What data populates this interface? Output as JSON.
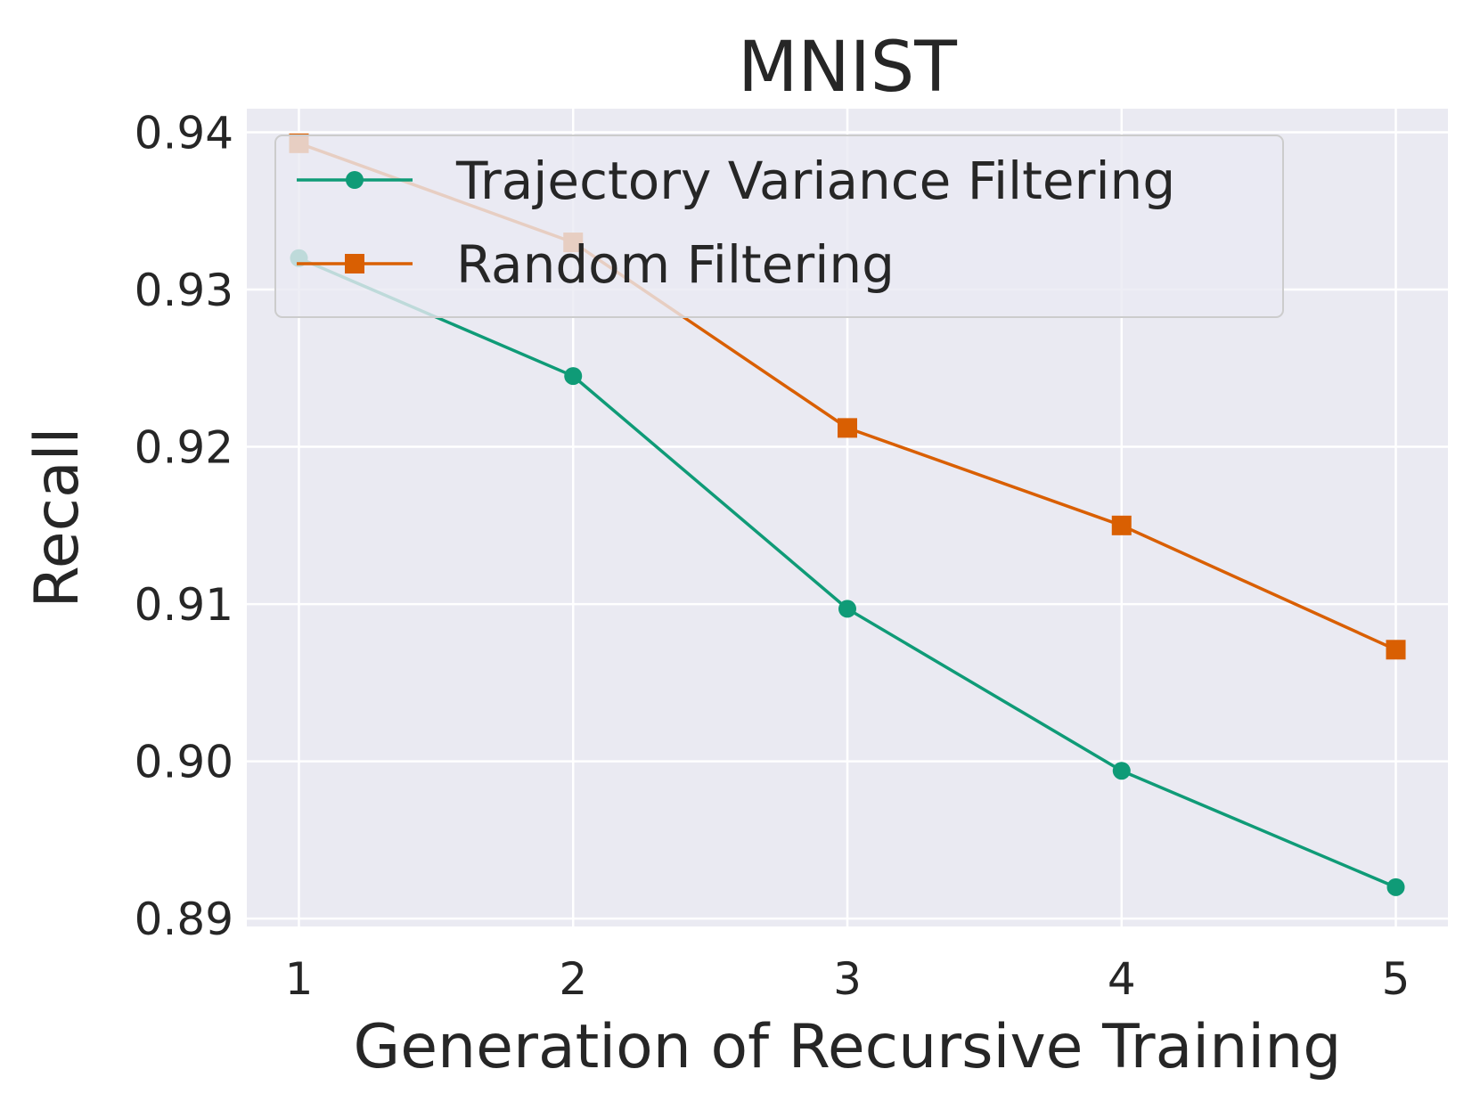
{
  "chart_data": {
    "type": "line",
    "title": "MNIST",
    "xlabel": "Generation of Recursive Training",
    "ylabel": "Recall",
    "x": [
      1,
      2,
      3,
      4,
      5
    ],
    "xlim": [
      0.81,
      5.19
    ],
    "ylim": [
      0.8895,
      0.9415
    ],
    "xticks": [
      1,
      2,
      3,
      4,
      5
    ],
    "xtick_labels": [
      "1",
      "2",
      "3",
      "4",
      "5"
    ],
    "yticks": [
      0.89,
      0.9,
      0.91,
      0.92,
      0.93,
      0.94
    ],
    "ytick_labels": [
      "0.89",
      "0.90",
      "0.91",
      "0.92",
      "0.93",
      "0.94"
    ],
    "grid": true,
    "legend_position": "upper-left",
    "background_color": "#eaeaf2",
    "grid_color": "#ffffff",
    "series": [
      {
        "name": "Trajectory Variance Filtering",
        "values": [
          0.932,
          0.9245,
          0.9097,
          0.8994,
          0.892
        ],
        "color": "#0f9b77",
        "marker": "circle"
      },
      {
        "name": "Random Filtering",
        "values": [
          0.9393,
          0.933,
          0.9212,
          0.915,
          0.9071
        ],
        "color": "#d95f02",
        "marker": "square"
      }
    ]
  }
}
